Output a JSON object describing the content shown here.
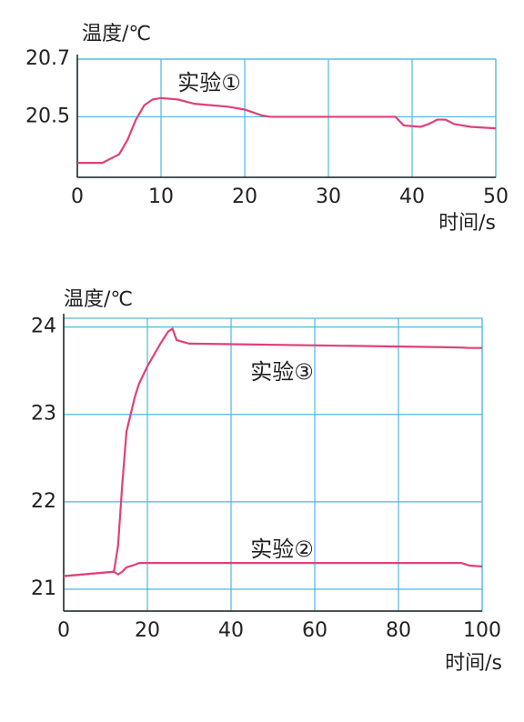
{
  "chart_data": [
    {
      "type": "line",
      "y_label": "温度/℃",
      "x_label": "时间/s",
      "xlim": [
        0,
        50
      ],
      "xticks": [
        0,
        10,
        20,
        30,
        40,
        50
      ],
      "ylim": [
        20.29,
        20.7
      ],
      "yticks": [
        20.5,
        20.7
      ],
      "grid": true,
      "x": [
        0,
        3,
        5,
        6,
        7,
        8,
        9,
        10,
        12,
        14,
        16,
        18,
        20,
        22,
        23,
        30,
        38,
        39,
        41,
        42,
        43,
        44,
        45,
        47,
        50
      ],
      "series": [
        {
          "name": "实验①",
          "color": "#e0407a",
          "values": [
            20.34,
            20.34,
            20.37,
            20.42,
            20.49,
            20.54,
            20.56,
            20.565,
            20.56,
            20.545,
            20.54,
            20.535,
            20.525,
            20.505,
            20.5,
            20.5,
            20.5,
            20.47,
            20.465,
            20.475,
            20.49,
            20.49,
            20.475,
            20.465,
            20.46
          ]
        }
      ]
    },
    {
      "type": "line",
      "y_label": "温度/℃",
      "x_label": "时间/s",
      "xlim": [
        0,
        100
      ],
      "xticks": [
        0,
        20,
        40,
        60,
        80,
        100
      ],
      "ylim": [
        20.75,
        24.1
      ],
      "yticks": [
        21,
        22,
        23,
        24
      ],
      "grid": true,
      "x": [
        0,
        12,
        13,
        14,
        15,
        17,
        18,
        20,
        23,
        25,
        26,
        27,
        30,
        90,
        95,
        97,
        100
      ],
      "series": [
        {
          "name": "实验③",
          "color": "#e0407a",
          "values": [
            21.15,
            21.2,
            21.5,
            22.2,
            22.8,
            23.2,
            23.35,
            23.55,
            23.8,
            23.95,
            23.98,
            23.85,
            23.81,
            23.77,
            23.765,
            23.76,
            23.76
          ]
        },
        {
          "name": "实验②",
          "color": "#e0407a",
          "values": [
            21.15,
            21.2,
            21.17,
            21.2,
            21.25,
            21.28,
            21.3,
            21.3,
            21.3,
            21.3,
            21.3,
            21.3,
            21.3,
            21.3,
            21.3,
            21.27,
            21.26
          ]
        }
      ]
    }
  ]
}
